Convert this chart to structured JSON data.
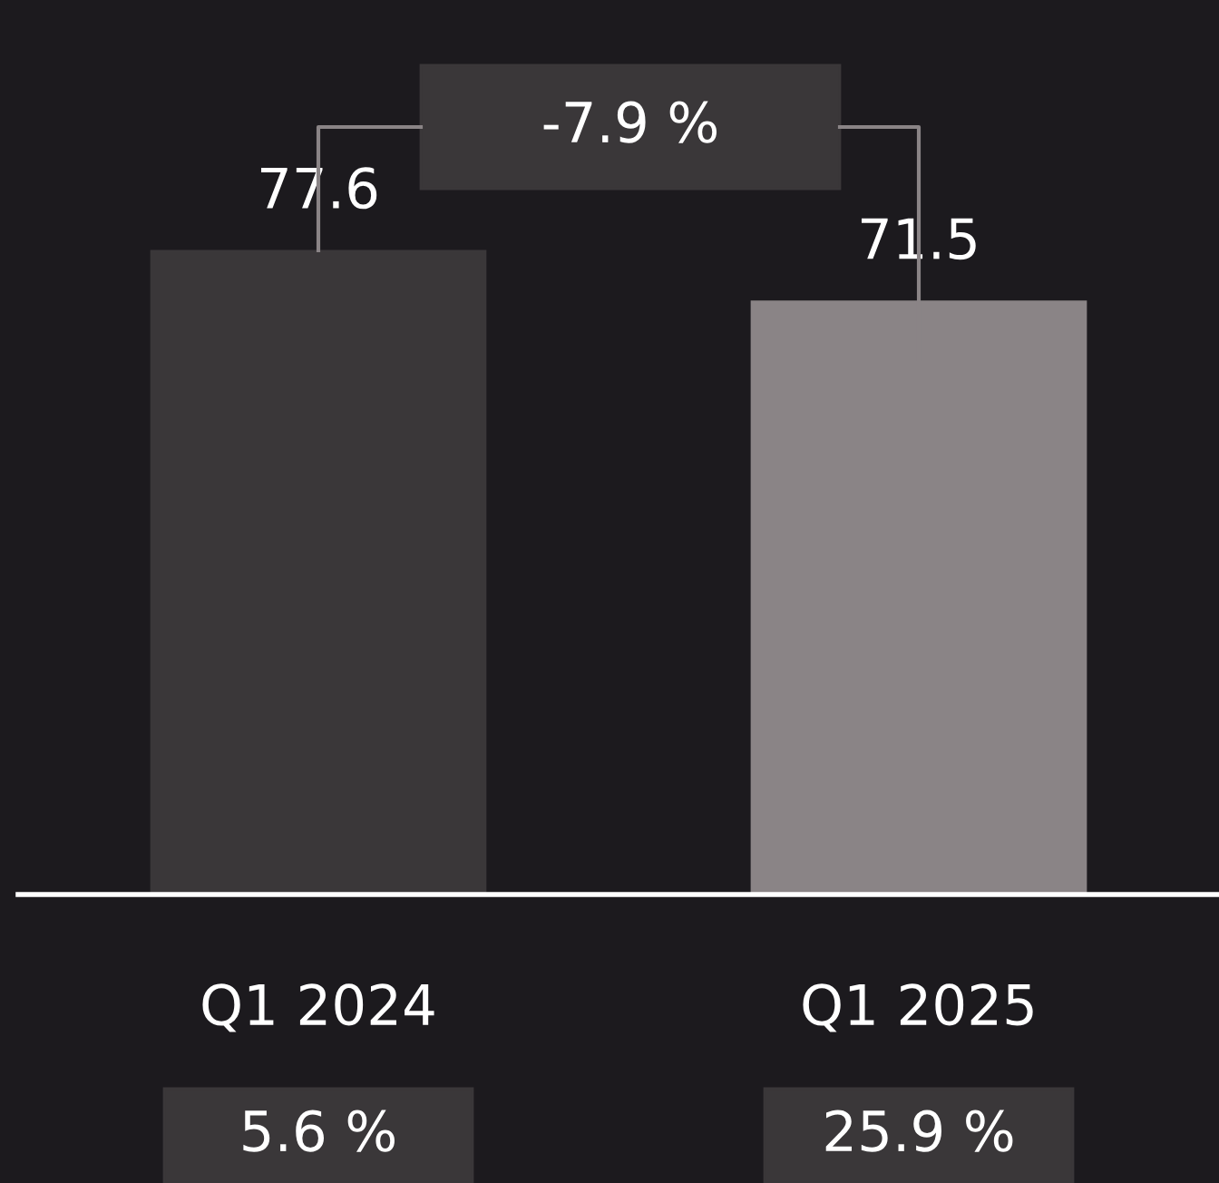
{
  "chart_data": {
    "type": "bar",
    "categories": [
      "Q1 2024",
      "Q1 2025"
    ],
    "values": [
      77.6,
      71.5
    ],
    "colors": [
      "#3a3739",
      "#8a8486"
    ],
    "data_labels": true,
    "grid": false,
    "legend": false,
    "tick_labels": "x",
    "annotations": [
      "-7.9 %",
      "5.6 %",
      "25.9 %"
    ]
  }
}
